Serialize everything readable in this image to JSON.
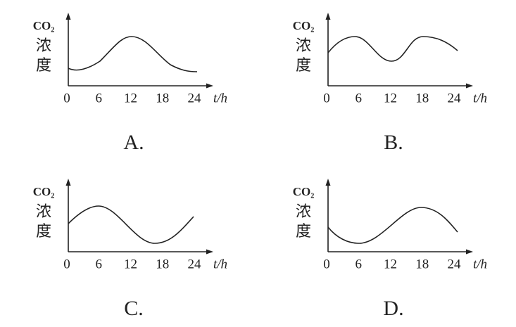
{
  "panels": [
    {
      "y_label": [
        "CO₂",
        "浓",
        "度"
      ],
      "x_ticks": [
        "0",
        "6",
        "12",
        "18",
        "24"
      ],
      "x_label": "t/h",
      "option": "A."
    },
    {
      "y_label": [
        "CO₂",
        "浓",
        "度"
      ],
      "x_ticks": [
        "0",
        "6",
        "12",
        "18",
        "24"
      ],
      "x_label": "t/h",
      "option": "B."
    },
    {
      "y_label": [
        "CO₂",
        "浓",
        "度"
      ],
      "x_ticks": [
        "0",
        "6",
        "12",
        "18",
        "24"
      ],
      "x_label": "t/h",
      "option": "C."
    },
    {
      "y_label": [
        "CO₂",
        "浓",
        "度"
      ],
      "x_ticks": [
        "0",
        "6",
        "12",
        "18",
        "24"
      ],
      "x_label": "t/h",
      "option": "D."
    }
  ]
}
